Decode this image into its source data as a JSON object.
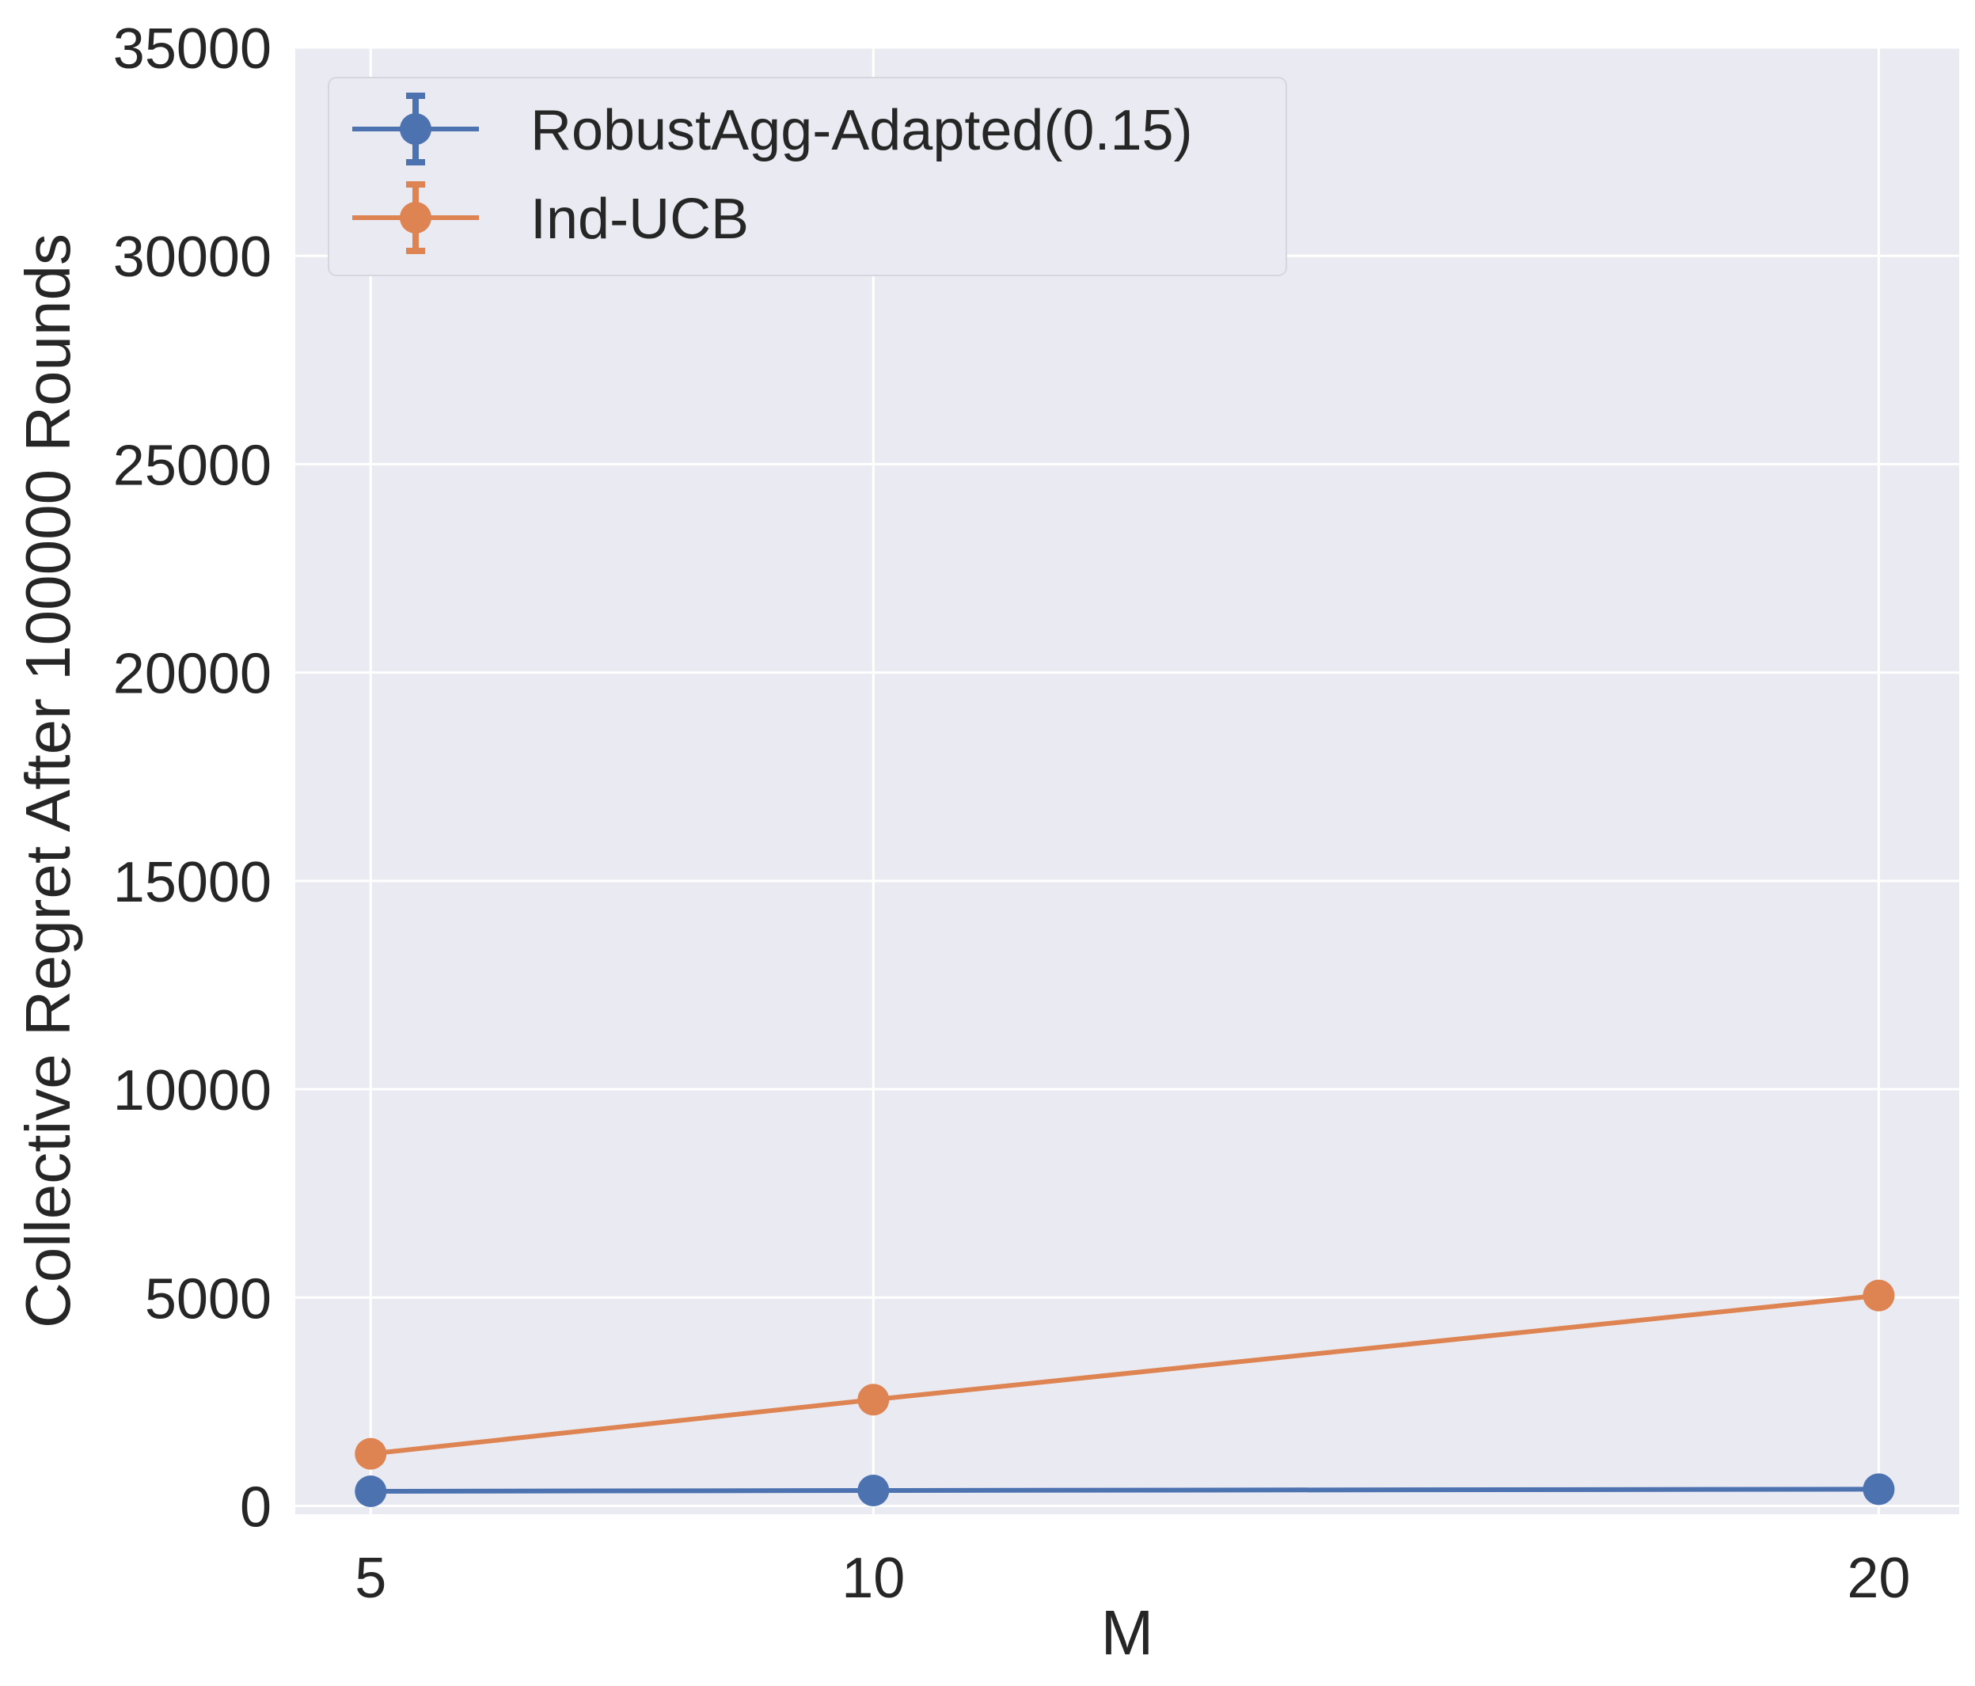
{
  "chart_data": {
    "type": "line",
    "title": "",
    "xlabel": "M",
    "ylabel": "Collective Regret After 100000 Rounds",
    "x": [
      5,
      10,
      20
    ],
    "x_tick_labels": [
      "5",
      "10",
      "20"
    ],
    "xlim": [
      4.25,
      20.8
    ],
    "ylim": [
      -200,
      35000
    ],
    "y_ticks": [
      0,
      5000,
      10000,
      15000,
      20000,
      25000,
      30000,
      35000
    ],
    "y_tick_labels": [
      "0",
      "5000",
      "10000",
      "15000",
      "20000",
      "25000",
      "30000",
      "35000"
    ],
    "grid": true,
    "legend_position": "upper-left",
    "background_color": "#eaeaf2",
    "grid_color": "#ffffff",
    "series": [
      {
        "name": "RobustAgg-Adapted(0.15)",
        "color": "#4c72b0",
        "values": [
          350,
          370,
          400
        ]
      },
      {
        "name": "Ind-UCB",
        "color": "#dd8452",
        "values": [
          1250,
          2550,
          5050
        ]
      }
    ]
  }
}
